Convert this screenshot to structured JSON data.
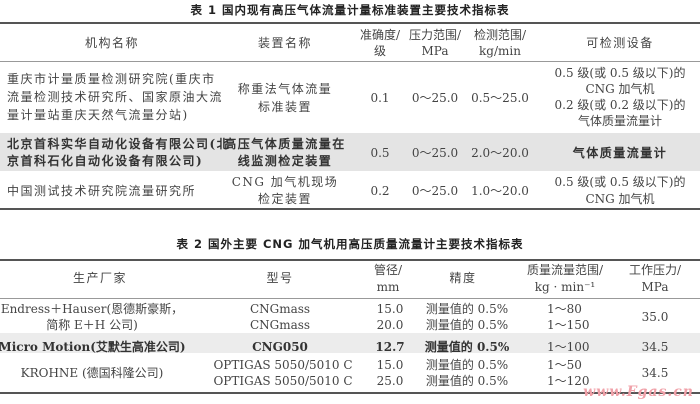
{
  "table1": {
    "title": "表 1   国内现有高压气体流量计量标准装置主要技术指标表",
    "headers": [
      "机构名称",
      "装置名称",
      "准确度/",
      "级",
      "压力范围/",
      "MPa",
      "检测范围/",
      "kg/min",
      "可检测设备"
    ],
    "rows": [
      {
        "org": [
          "重庆市计量质量检测研究院(重庆市",
          "流量检测技术研究所、国家原油大流",
          "量计量站重庆天然气流量分站)"
        ],
        "device": [
          "称重法气体流量",
          "标准装置"
        ],
        "accuracy": "0.1",
        "pressure": "0～25.0",
        "range": "0.5～25.0",
        "equipment": [
          "0.5 级(或 0.5 级以下)的",
          "CNG 加气机",
          "0.2 级(或 0.2 级以下)的",
          "气体质量流量计"
        ]
      },
      {
        "org": [
          "北京首科实华自动化设备有限公司(北",
          "京首科石化自动化设备有限公司)"
        ],
        "device": [
          "高压气体质量流量在",
          "线监测检定装置"
        ],
        "accuracy": "0.5",
        "pressure": "0～25.0",
        "range": "2.0～20.0",
        "equipment": [
          "气体质量流量计"
        ]
      },
      {
        "org": [
          "中国测试技术研究院流量研究所"
        ],
        "device": [
          "CNG 加气机现场",
          "检定装置"
        ],
        "accuracy": "0.2",
        "pressure": "0～25.0",
        "range": "1.0～20.0",
        "equipment": [
          "0.5 级(或 0.5 级以下)的",
          "CNG 加气机"
        ]
      }
    ]
  },
  "table2": {
    "title": "表 2   国外主要 CNG 加气机用高压质量流量计主要技术指标表",
    "headers": [
      "生产厂家",
      "型号",
      "管径/",
      "mm",
      "精度",
      "质量流量范围/",
      "kg · min⁻¹",
      "工作压力/",
      "MPa"
    ],
    "rows": [
      {
        "maker": [
          "Endress＋Hauser(恩德斯豪斯，",
          "简称 E＋H 公司)"
        ],
        "models": [
          "CNGmass",
          "CNGmass"
        ],
        "dn": [
          "15.0",
          "20.0"
        ],
        "precision": [
          "测量值的 0.5%",
          "测量值的 0.5%"
        ],
        "flow": [
          "1～80",
          "1～150"
        ],
        "pressure": "35.0"
      },
      {
        "maker": [
          "Micro Motion(艾默生高准公司)"
        ],
        "models": [
          "CNG050"
        ],
        "dn": [
          "12.7"
        ],
        "precision": [
          "测量值的 0.5%"
        ],
        "flow": [
          "1～100"
        ],
        "pressure": "34.5"
      },
      {
        "maker": [
          "KROHNE (德国科隆公司)"
        ],
        "models": [
          "OPTIGAS 5050/5010 C",
          "OPTIGAS 5050/5010 C"
        ],
        "dn": [
          "15.0",
          "25.0"
        ],
        "precision": [
          "测量值的 0.5%",
          "测量值的 0.5%"
        ],
        "flow": [
          "1～50",
          "1～120"
        ],
        "pressure": "34.5"
      }
    ]
  },
  "watermark": "www.Fgas.cn"
}
